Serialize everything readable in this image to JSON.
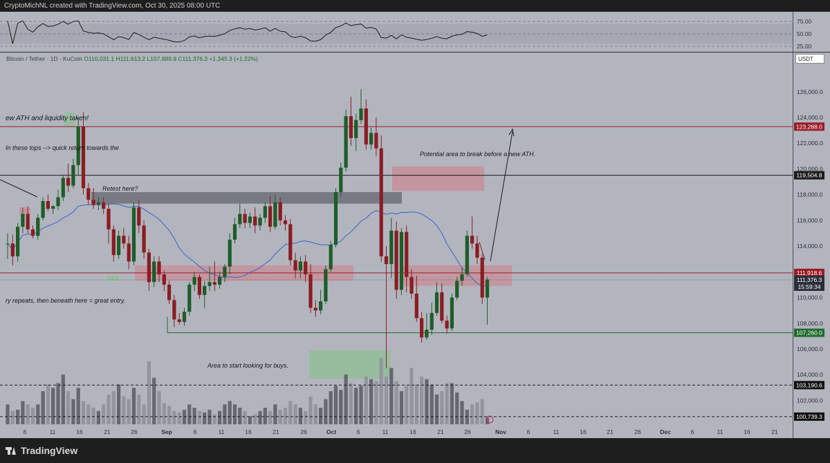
{
  "header": {
    "credit": "CryptoMichNL created with TradingView.com, Oct 30, 2025 08:00 UTC"
  },
  "ohlc": {
    "symbol": "Bitcoin / Tether · 1D · KuCoin",
    "values": "O110,031.1 H111,613.2 L107,889.8 C111,376.3 +1,345.3 (+1.22%)"
  },
  "currency_label": "USDT",
  "logo_text": "TradingView",
  "colors": {
    "background": "#b2b5be",
    "bullish": "#1e5c28",
    "bearish": "#8a1c22",
    "ma": "#3a62c8",
    "resistance": "#9a1c28",
    "support": "#1f6b2c"
  },
  "chart_data": {
    "type": "candlestick",
    "symbol": "BTC/USDT",
    "interval": "1D",
    "ylim": [
      100000,
      128000
    ],
    "y_ticks": [
      102000,
      104000,
      106000,
      108000,
      110000,
      112000,
      114000,
      116000,
      118000,
      120000,
      122000,
      124000,
      126000
    ],
    "x_labels": [
      "6",
      "11",
      "16",
      "21",
      "26",
      "Sep",
      "6",
      "11",
      "16",
      "21",
      "26",
      "Oct",
      "6",
      "11",
      "16",
      "21",
      "26",
      "Nov",
      "6",
      "11",
      "16",
      "21",
      "26",
      "Dec",
      "6",
      "11",
      "16",
      "21"
    ],
    "candles": [
      {
        "o": 114200,
        "h": 115000,
        "l": 113000,
        "c": 114200
      },
      {
        "o": 114200,
        "h": 114900,
        "l": 112500,
        "c": 113200
      },
      {
        "o": 113200,
        "h": 115800,
        "l": 112800,
        "c": 115500
      },
      {
        "o": 115500,
        "h": 117000,
        "l": 115000,
        "c": 116500
      },
      {
        "o": 116500,
        "h": 117100,
        "l": 115000,
        "c": 115300
      },
      {
        "o": 115300,
        "h": 115600,
        "l": 114600,
        "c": 114800
      },
      {
        "o": 114800,
        "h": 116500,
        "l": 114500,
        "c": 116200
      },
      {
        "o": 116200,
        "h": 117800,
        "l": 116000,
        "c": 117500
      },
      {
        "o": 117500,
        "h": 118000,
        "l": 116700,
        "c": 116900
      },
      {
        "o": 116900,
        "h": 117200,
        "l": 116500,
        "c": 117100
      },
      {
        "o": 117100,
        "h": 118400,
        "l": 116800,
        "c": 117800
      },
      {
        "o": 117800,
        "h": 119500,
        "l": 117500,
        "c": 119300
      },
      {
        "o": 119300,
        "h": 120400,
        "l": 118200,
        "c": 118700
      },
      {
        "o": 118700,
        "h": 120800,
        "l": 118500,
        "c": 120300
      },
      {
        "o": 120300,
        "h": 124000,
        "l": 119500,
        "c": 123300
      },
      {
        "o": 123300,
        "h": 124400,
        "l": 118000,
        "c": 118500
      },
      {
        "o": 118500,
        "h": 118900,
        "l": 117200,
        "c": 117600
      },
      {
        "o": 117600,
        "h": 118500,
        "l": 116900,
        "c": 117200
      },
      {
        "o": 117200,
        "h": 117800,
        "l": 116800,
        "c": 117400
      },
      {
        "o": 117400,
        "h": 117800,
        "l": 116500,
        "c": 116900
      },
      {
        "o": 116900,
        "h": 117300,
        "l": 114200,
        "c": 115300
      },
      {
        "o": 115300,
        "h": 115600,
        "l": 112800,
        "c": 113300
      },
      {
        "o": 113300,
        "h": 115200,
        "l": 113000,
        "c": 114800
      },
      {
        "o": 114800,
        "h": 115400,
        "l": 113800,
        "c": 114200
      },
      {
        "o": 114200,
        "h": 114800,
        "l": 112200,
        "c": 112800
      },
      {
        "o": 112800,
        "h": 117400,
        "l": 112500,
        "c": 117000
      },
      {
        "o": 117000,
        "h": 117600,
        "l": 115000,
        "c": 115600
      },
      {
        "o": 115600,
        "h": 116000,
        "l": 113000,
        "c": 113500
      },
      {
        "o": 113500,
        "h": 113800,
        "l": 110500,
        "c": 111200
      },
      {
        "o": 111200,
        "h": 113200,
        "l": 110800,
        "c": 112800
      },
      {
        "o": 112800,
        "h": 113200,
        "l": 111200,
        "c": 111800
      },
      {
        "o": 111800,
        "h": 112100,
        "l": 110500,
        "c": 111000
      },
      {
        "o": 111000,
        "h": 111300,
        "l": 109500,
        "c": 109800
      },
      {
        "o": 109800,
        "h": 110200,
        "l": 107700,
        "c": 108300
      },
      {
        "o": 108300,
        "h": 108800,
        "l": 107900,
        "c": 108100
      },
      {
        "o": 108100,
        "h": 109200,
        "l": 107800,
        "c": 108900
      },
      {
        "o": 108900,
        "h": 111200,
        "l": 108600,
        "c": 111000
      },
      {
        "o": 111000,
        "h": 112000,
        "l": 110500,
        "c": 111600
      },
      {
        "o": 111600,
        "h": 111800,
        "l": 109900,
        "c": 110200
      },
      {
        "o": 110200,
        "h": 111300,
        "l": 109200,
        "c": 110900
      },
      {
        "o": 110900,
        "h": 112400,
        "l": 110500,
        "c": 111200
      },
      {
        "o": 111200,
        "h": 112800,
        "l": 110500,
        "c": 111000
      },
      {
        "o": 111000,
        "h": 112000,
        "l": 110700,
        "c": 111600
      },
      {
        "o": 111600,
        "h": 112600,
        "l": 111200,
        "c": 112400
      },
      {
        "o": 112400,
        "h": 115000,
        "l": 111800,
        "c": 114500
      },
      {
        "o": 114500,
        "h": 116200,
        "l": 114200,
        "c": 115700
      },
      {
        "o": 115700,
        "h": 117300,
        "l": 115400,
        "c": 116500
      },
      {
        "o": 116500,
        "h": 116900,
        "l": 115400,
        "c": 115800
      },
      {
        "o": 115800,
        "h": 116600,
        "l": 115400,
        "c": 116300
      },
      {
        "o": 116300,
        "h": 117000,
        "l": 115000,
        "c": 115600
      },
      {
        "o": 115600,
        "h": 116500,
        "l": 115200,
        "c": 116200
      },
      {
        "o": 116200,
        "h": 117400,
        "l": 115800,
        "c": 117100
      },
      {
        "o": 117100,
        "h": 117900,
        "l": 115100,
        "c": 115500
      },
      {
        "o": 115500,
        "h": 118000,
        "l": 115300,
        "c": 117400
      },
      {
        "o": 117400,
        "h": 117800,
        "l": 115600,
        "c": 116000
      },
      {
        "o": 116000,
        "h": 116400,
        "l": 115200,
        "c": 115700
      },
      {
        "o": 115700,
        "h": 116100,
        "l": 112500,
        "c": 112900
      },
      {
        "o": 112900,
        "h": 113500,
        "l": 111500,
        "c": 112100
      },
      {
        "o": 112100,
        "h": 113200,
        "l": 111500,
        "c": 112800
      },
      {
        "o": 112800,
        "h": 113300,
        "l": 111200,
        "c": 111800
      },
      {
        "o": 111800,
        "h": 112600,
        "l": 108800,
        "c": 109200
      },
      {
        "o": 109200,
        "h": 109800,
        "l": 108500,
        "c": 109000
      },
      {
        "o": 109000,
        "h": 110600,
        "l": 108700,
        "c": 109700
      },
      {
        "o": 109700,
        "h": 112500,
        "l": 109500,
        "c": 112200
      },
      {
        "o": 112200,
        "h": 114400,
        "l": 112000,
        "c": 114100
      },
      {
        "o": 114100,
        "h": 118500,
        "l": 113900,
        "c": 118200
      },
      {
        "o": 118200,
        "h": 120500,
        "l": 117800,
        "c": 120100
      },
      {
        "o": 120100,
        "h": 124600,
        "l": 119800,
        "c": 124100
      },
      {
        "o": 124100,
        "h": 125600,
        "l": 121800,
        "c": 122400
      },
      {
        "o": 122400,
        "h": 124300,
        "l": 121400,
        "c": 123800
      },
      {
        "o": 123800,
        "h": 126200,
        "l": 123500,
        "c": 124700
      },
      {
        "o": 124700,
        "h": 125400,
        "l": 121500,
        "c": 121900
      },
      {
        "o": 121900,
        "h": 123200,
        "l": 121500,
        "c": 122800
      },
      {
        "o": 122800,
        "h": 124000,
        "l": 121000,
        "c": 121600
      },
      {
        "o": 121600,
        "h": 122600,
        "l": 112800,
        "c": 113200
      },
      {
        "o": 113200,
        "h": 114000,
        "l": 104500,
        "c": 112600
      },
      {
        "o": 112600,
        "h": 116200,
        "l": 111500,
        "c": 115200
      },
      {
        "o": 115200,
        "h": 115900,
        "l": 109900,
        "c": 110600
      },
      {
        "o": 110600,
        "h": 115400,
        "l": 110200,
        "c": 115100
      },
      {
        "o": 115100,
        "h": 115600,
        "l": 110400,
        "c": 111600
      },
      {
        "o": 111600,
        "h": 112200,
        "l": 109900,
        "c": 110300
      },
      {
        "o": 110300,
        "h": 111700,
        "l": 108100,
        "c": 108400
      },
      {
        "o": 108400,
        "h": 108900,
        "l": 106500,
        "c": 106900
      },
      {
        "o": 106900,
        "h": 108800,
        "l": 106700,
        "c": 107500
      },
      {
        "o": 107500,
        "h": 109600,
        "l": 107100,
        "c": 108800
      },
      {
        "o": 108800,
        "h": 111200,
        "l": 108600,
        "c": 110400
      },
      {
        "o": 110400,
        "h": 111100,
        "l": 108000,
        "c": 108200
      },
      {
        "o": 108200,
        "h": 108600,
        "l": 107200,
        "c": 107600
      },
      {
        "o": 107600,
        "h": 110300,
        "l": 107400,
        "c": 110000
      },
      {
        "o": 110000,
        "h": 111600,
        "l": 109800,
        "c": 111300
      },
      {
        "o": 111300,
        "h": 112300,
        "l": 110900,
        "c": 111800
      },
      {
        "o": 111800,
        "h": 115200,
        "l": 111600,
        "c": 114800
      },
      {
        "o": 114800,
        "h": 116300,
        "l": 113800,
        "c": 114200
      },
      {
        "o": 114200,
        "h": 114800,
        "l": 112600,
        "c": 113100
      },
      {
        "o": 113100,
        "h": 113400,
        "l": 109500,
        "c": 110000
      },
      {
        "o": 110000,
        "h": 111600,
        "l": 107900,
        "c": 111400
      }
    ],
    "volume_relative": [
      0.3,
      0.2,
      0.22,
      0.35,
      0.3,
      0.25,
      0.3,
      0.5,
      0.6,
      0.55,
      0.62,
      0.75,
      0.5,
      0.38,
      0.55,
      0.35,
      0.3,
      0.25,
      0.2,
      0.3,
      0.45,
      0.5,
      0.6,
      0.42,
      0.38,
      0.55,
      0.45,
      0.3,
      0.95,
      0.7,
      0.5,
      0.32,
      0.28,
      0.2,
      0.18,
      0.22,
      0.3,
      0.25,
      0.2,
      0.18,
      0.22,
      0.15,
      0.2,
      0.3,
      0.35,
      0.3,
      0.25,
      0.2,
      0.12,
      0.15,
      0.2,
      0.25,
      0.2,
      0.3,
      0.22,
      0.25,
      0.35,
      0.3,
      0.25,
      0.2,
      0.42,
      0.3,
      0.25,
      0.38,
      0.5,
      0.58,
      0.52,
      0.75,
      0.62,
      0.55,
      0.58,
      0.72,
      0.68,
      0.65,
      1.0,
      0.72,
      0.85,
      0.65,
      0.5,
      0.58,
      0.85,
      0.6,
      0.72,
      0.68,
      0.6,
      0.45,
      0.5,
      0.62,
      0.62,
      0.48,
      0.35,
      0.22,
      0.3,
      0.33,
      0.38,
      0.1
    ],
    "price_lines": [
      {
        "label": "123,288.0",
        "value": 123288,
        "style": "resistance"
      },
      {
        "label": "119,504.8",
        "value": 119504.8,
        "style": "level"
      },
      {
        "label": "111,918.6",
        "value": 111918.6,
        "style": "resistance"
      },
      {
        "label": "107,260.0",
        "value": 107260,
        "style": "support"
      },
      {
        "label": "103,190.6",
        "value": 103190.6,
        "style": "dashed"
      },
      {
        "label": "100,739.3",
        "value": 100739.3,
        "style": "dashed"
      }
    ],
    "current_price": {
      "label": "111,376.3",
      "countdown": "15:59:34",
      "value": 111376.3
    },
    "rsi": {
      "ticks": [
        "75.00",
        "50.00",
        "25.00"
      ]
    },
    "annotations": [
      {
        "text": "ew ATH and liquidity taken!"
      },
      {
        "text": "In these tops --> quick return towards the"
      },
      {
        "text": "Retest here?"
      },
      {
        "text": "Potential area to break before a new ATH."
      },
      {
        "text": "ry repeats, then beneath here = great entry."
      },
      {
        "text": "Area to start looking for buys."
      }
    ]
  }
}
